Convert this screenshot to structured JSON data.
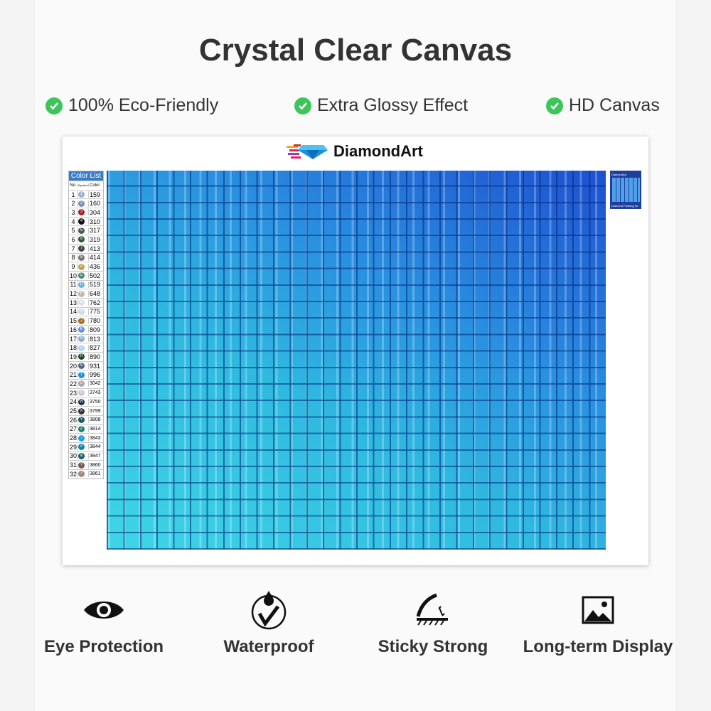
{
  "title": "Crystal Clear Canvas",
  "features": [
    {
      "label": "100% Eco-Friendly",
      "icon": "check-circle-icon"
    },
    {
      "label": "Extra Glossy Effect",
      "icon": "check-circle-icon"
    },
    {
      "label": "HD Canvas",
      "icon": "check-circle-icon"
    }
  ],
  "brand": {
    "name": "DiamondArt",
    "thumb_caption": "Diamond Painting Se"
  },
  "color_list": {
    "title": "Color List",
    "headers": [
      "No.",
      "Symbol",
      "Color"
    ],
    "rows": [
      [
        "1",
        "1",
        "159",
        "#9ab0d0"
      ],
      [
        "2",
        "2",
        "160",
        "#7a8fb8"
      ],
      [
        "3",
        "3",
        "304",
        "#b01820"
      ],
      [
        "4",
        "4",
        "310",
        "#111111"
      ],
      [
        "5",
        "5",
        "317",
        "#555555"
      ],
      [
        "6",
        "6",
        "319",
        "#2a5a30"
      ],
      [
        "7",
        "7",
        "413",
        "#444444"
      ],
      [
        "8",
        "8",
        "414",
        "#777777"
      ],
      [
        "9",
        "A",
        "436",
        "#c89a50"
      ],
      [
        "10",
        "C",
        "502",
        "#4a8a70"
      ],
      [
        "11",
        "D",
        "519",
        "#6ab0d8"
      ],
      [
        "12",
        "F",
        "648",
        "#c0b8a8"
      ],
      [
        "13",
        "G",
        "762",
        "#e0e0e0"
      ],
      [
        "14",
        "H",
        "775",
        "#c8dcec"
      ],
      [
        "15",
        "J",
        "780",
        "#a87020"
      ],
      [
        "16",
        "K",
        "809",
        "#6a90d8"
      ],
      [
        "17",
        "N",
        "813",
        "#80b0e0"
      ],
      [
        "18",
        "Q",
        "827",
        "#b0d0ec"
      ],
      [
        "19",
        "R",
        "890",
        "#1a4a20"
      ],
      [
        "20",
        "S",
        "931",
        "#4a6a88"
      ],
      [
        "21",
        "T",
        "996",
        "#2090e0"
      ],
      [
        "22",
        "U",
        "3042",
        "#b0a0b0"
      ],
      [
        "23",
        "V",
        "3743",
        "#d0c8d8"
      ],
      [
        "24",
        "W",
        "3750",
        "#1a3050"
      ],
      [
        "25",
        "X",
        "3799",
        "#333333"
      ],
      [
        "26",
        "Y",
        "3808",
        "#1a5a68"
      ],
      [
        "27",
        "Z",
        "3814",
        "#20806a"
      ],
      [
        "28",
        "♡",
        "3843",
        "#20a0e8"
      ],
      [
        "29",
        "#",
        "3844",
        "#1080b0"
      ],
      [
        "30",
        "&",
        "3847",
        "#106068"
      ],
      [
        "31",
        "?",
        "3860",
        "#7a5a50"
      ],
      [
        "32",
        "/",
        "3861",
        "#a08878"
      ]
    ]
  },
  "benefits": [
    {
      "label": "Eye Protection",
      "icon": "eye-icon"
    },
    {
      "label": "Waterproof",
      "icon": "waterproof-icon"
    },
    {
      "label": "Sticky Strong",
      "icon": "sticky-icon"
    },
    {
      "label": "Long-term Display",
      "icon": "image-icon"
    }
  ]
}
